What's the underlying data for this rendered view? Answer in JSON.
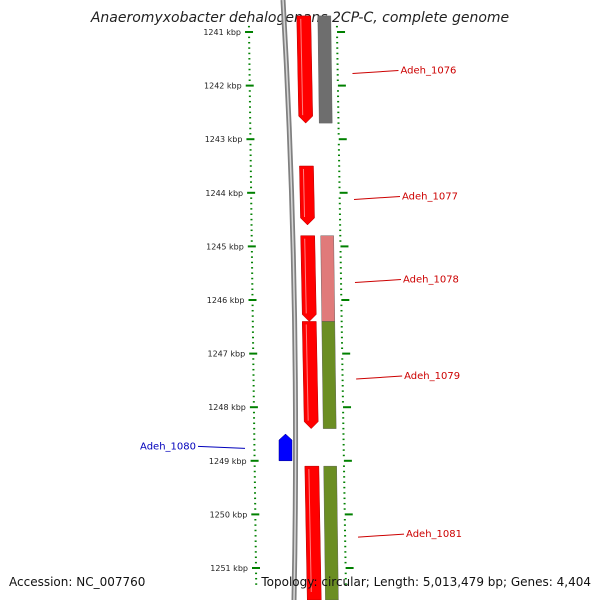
{
  "title": "Anaeromyxobacter dehalogenans 2CP-C, complete genome",
  "accession": "Accession: NC_007760",
  "topology": "Topology: circular; Length: 5,013,479 bp; Genes: 4,404",
  "axis": {
    "unit": "kbp",
    "start_kbp": 1240.9,
    "end_kbp": 1251.3,
    "ticks": [
      "1241 kbp",
      "1242 kbp",
      "1243 kbp",
      "1244 kbp",
      "1245 kbp",
      "1246 kbp",
      "1247 kbp",
      "1248 kbp",
      "1249 kbp",
      "1250 kbp",
      "1251 kbp"
    ]
  },
  "colors": {
    "tick": "#008000",
    "ring": "#808080",
    "cds": "#ff0000",
    "gray_track": "#6e6e6e",
    "pink_track": "#e07a7a",
    "olive_track": "#6b8e23",
    "minus_gene": "#0000ff",
    "plus_label": "#cc0000",
    "minus_label": "#0000bb"
  },
  "genes": [
    {
      "name": "Adeh_1076",
      "start_kbp": 1240.7,
      "end_kbp": 1242.7,
      "strand": "+",
      "track_color": "gray"
    },
    {
      "name": "Adeh_1077",
      "start_kbp": 1243.5,
      "end_kbp": 1244.6,
      "strand": "+",
      "track_color": "none"
    },
    {
      "name": "Adeh_1078",
      "start_kbp": 1244.8,
      "end_kbp": 1246.4,
      "strand": "+",
      "track_color": "pink"
    },
    {
      "name": "Adeh_1079",
      "start_kbp": 1246.4,
      "end_kbp": 1248.4,
      "strand": "+",
      "track_color": "olive"
    },
    {
      "name": "Adeh_1080",
      "start_kbp": 1248.5,
      "end_kbp": 1249.0,
      "strand": "-",
      "track_color": "none"
    },
    {
      "name": "Adeh_1081",
      "start_kbp": 1249.1,
      "end_kbp": 1251.6,
      "strand": "+",
      "track_color": "olive"
    }
  ]
}
